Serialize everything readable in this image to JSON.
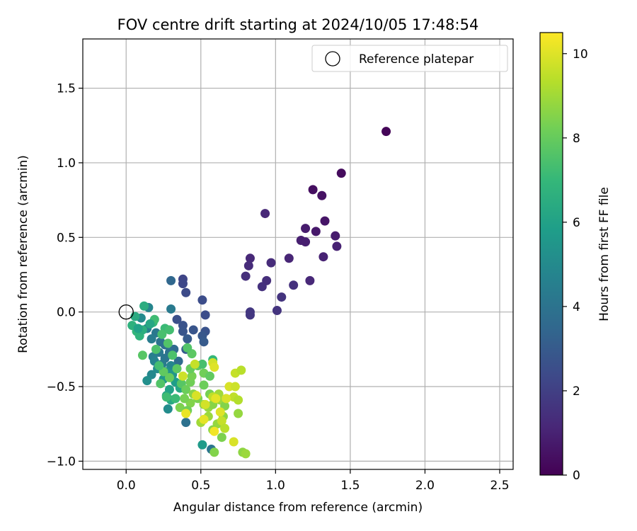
{
  "chart_data": {
    "type": "scatter",
    "title": "FOV centre drift starting at 2024/10/05 17:48:54",
    "xlabel": "Angular distance from reference (arcmin)",
    "ylabel": "Rotation from reference (arcmin)",
    "xlim": [
      -0.29,
      2.59
    ],
    "ylim": [
      -1.055,
      1.83
    ],
    "xticks": [
      0.0,
      0.5,
      1.0,
      1.5,
      2.0,
      2.5
    ],
    "xtick_labels": [
      "0.0",
      "0.5",
      "1.0",
      "1.5",
      "2.0",
      "2.5"
    ],
    "yticks": [
      -1.0,
      -0.5,
      0.0,
      0.5,
      1.0,
      1.5
    ],
    "ytick_labels": [
      "−1.0",
      "−0.5",
      "0.0",
      "0.5",
      "1.0",
      "1.5"
    ],
    "grid": true,
    "legend": {
      "position": "top-right",
      "entries": [
        "Reference platepar"
      ]
    },
    "reference": {
      "x": 0.0,
      "y": 0.0
    },
    "colorbar": {
      "label": "Hours from first FF file",
      "range": [
        0,
        10.5
      ],
      "ticks": [
        0,
        2,
        4,
        6,
        8,
        10
      ],
      "tick_labels": [
        "0",
        "2",
        "4",
        "6",
        "8",
        "10"
      ],
      "colormap": "viridis",
      "colors": [
        "#440154",
        "#482878",
        "#3e4989",
        "#31688e",
        "#26828e",
        "#1f9e89",
        "#35b779",
        "#6ece58",
        "#b5de2b",
        "#fde725"
      ]
    },
    "points": [
      {
        "x": 1.74,
        "y": 1.21,
        "h": 0.1
      },
      {
        "x": 1.44,
        "y": 0.93,
        "h": 0.3
      },
      {
        "x": 1.25,
        "y": 0.82,
        "h": 0.4
      },
      {
        "x": 1.31,
        "y": 0.78,
        "h": 0.5
      },
      {
        "x": 1.33,
        "y": 0.61,
        "h": 0.6
      },
      {
        "x": 1.27,
        "y": 0.54,
        "h": 0.7
      },
      {
        "x": 1.2,
        "y": 0.56,
        "h": 0.8
      },
      {
        "x": 1.4,
        "y": 0.51,
        "h": 0.8
      },
      {
        "x": 1.17,
        "y": 0.48,
        "h": 0.9
      },
      {
        "x": 1.2,
        "y": 0.47,
        "h": 0.9
      },
      {
        "x": 1.41,
        "y": 0.44,
        "h": 1.0
      },
      {
        "x": 1.32,
        "y": 0.37,
        "h": 1.0
      },
      {
        "x": 1.09,
        "y": 0.36,
        "h": 1.1
      },
      {
        "x": 0.93,
        "y": 0.66,
        "h": 1.2
      },
      {
        "x": 0.83,
        "y": 0.36,
        "h": 1.2
      },
      {
        "x": 0.82,
        "y": 0.31,
        "h": 1.3
      },
      {
        "x": 0.97,
        "y": 0.33,
        "h": 1.3
      },
      {
        "x": 0.8,
        "y": 0.24,
        "h": 1.4
      },
      {
        "x": 0.94,
        "y": 0.21,
        "h": 1.4
      },
      {
        "x": 1.23,
        "y": 0.21,
        "h": 1.2
      },
      {
        "x": 1.12,
        "y": 0.18,
        "h": 1.5
      },
      {
        "x": 0.91,
        "y": 0.17,
        "h": 1.5
      },
      {
        "x": 1.04,
        "y": 0.1,
        "h": 1.6
      },
      {
        "x": 1.01,
        "y": 0.01,
        "h": 1.6
      },
      {
        "x": 0.83,
        "y": 0.0,
        "h": 1.7
      },
      {
        "x": 0.83,
        "y": -0.02,
        "h": 1.7
      },
      {
        "x": 0.38,
        "y": 0.22,
        "h": 2.2
      },
      {
        "x": 0.38,
        "y": 0.19,
        "h": 2.3
      },
      {
        "x": 0.4,
        "y": 0.13,
        "h": 2.4
      },
      {
        "x": 0.51,
        "y": 0.08,
        "h": 2.5
      },
      {
        "x": 0.53,
        "y": -0.02,
        "h": 2.5
      },
      {
        "x": 0.34,
        "y": -0.05,
        "h": 2.6
      },
      {
        "x": 0.38,
        "y": -0.09,
        "h": 2.7
      },
      {
        "x": 0.53,
        "y": -0.13,
        "h": 2.7
      },
      {
        "x": 0.45,
        "y": -0.12,
        "h": 2.8
      },
      {
        "x": 0.38,
        "y": -0.13,
        "h": 2.8
      },
      {
        "x": 0.51,
        "y": -0.16,
        "h": 2.9
      },
      {
        "x": 0.52,
        "y": -0.2,
        "h": 3.0
      },
      {
        "x": 0.41,
        "y": -0.18,
        "h": 3.0
      },
      {
        "x": 0.4,
        "y": -0.25,
        "h": 3.1
      },
      {
        "x": 0.3,
        "y": 0.21,
        "h": 3.5
      },
      {
        "x": 0.3,
        "y": 0.02,
        "h": 4.3
      },
      {
        "x": 0.15,
        "y": 0.03,
        "h": 4.8
      },
      {
        "x": 0.1,
        "y": -0.04,
        "h": 5.0
      },
      {
        "x": 0.14,
        "y": -0.11,
        "h": 4.6
      },
      {
        "x": 0.2,
        "y": -0.14,
        "h": 4.2
      },
      {
        "x": 0.17,
        "y": -0.18,
        "h": 4.4
      },
      {
        "x": 0.23,
        "y": -0.2,
        "h": 4.0
      },
      {
        "x": 0.26,
        "y": -0.22,
        "h": 3.8
      },
      {
        "x": 0.32,
        "y": -0.25,
        "h": 3.6
      },
      {
        "x": 0.22,
        "y": -0.27,
        "h": 4.2
      },
      {
        "x": 0.29,
        "y": -0.27,
        "h": 3.9
      },
      {
        "x": 0.18,
        "y": -0.3,
        "h": 4.5
      },
      {
        "x": 0.26,
        "y": -0.31,
        "h": 4.1
      },
      {
        "x": 0.35,
        "y": -0.33,
        "h": 3.7
      },
      {
        "x": 0.19,
        "y": -0.33,
        "h": 4.7
      },
      {
        "x": 0.24,
        "y": -0.35,
        "h": 4.3
      },
      {
        "x": 0.3,
        "y": -0.36,
        "h": 4.8
      },
      {
        "x": 0.21,
        "y": -0.38,
        "h": 5.1
      },
      {
        "x": 0.27,
        "y": -0.4,
        "h": 5.3
      },
      {
        "x": 0.17,
        "y": -0.42,
        "h": 4.9
      },
      {
        "x": 0.14,
        "y": -0.46,
        "h": 5.2
      },
      {
        "x": 0.31,
        "y": -0.42,
        "h": 5.5
      },
      {
        "x": 0.25,
        "y": -0.45,
        "h": 5.6
      },
      {
        "x": 0.33,
        "y": -0.47,
        "h": 5.8
      },
      {
        "x": 0.29,
        "y": -0.52,
        "h": 6.0
      },
      {
        "x": 0.36,
        "y": -0.51,
        "h": 6.2
      },
      {
        "x": 0.27,
        "y": -0.56,
        "h": 6.1
      },
      {
        "x": 0.3,
        "y": -0.59,
        "h": 6.3
      },
      {
        "x": 0.28,
        "y": -0.65,
        "h": 5.1
      },
      {
        "x": 0.4,
        "y": -0.74,
        "h": 3.9
      },
      {
        "x": 0.51,
        "y": -0.89,
        "h": 5.7
      },
      {
        "x": 0.57,
        "y": -0.92,
        "h": 4.1
      },
      {
        "x": 0.12,
        "y": 0.04,
        "h": 6.5
      },
      {
        "x": 0.06,
        "y": -0.03,
        "h": 6.4
      },
      {
        "x": 0.04,
        "y": -0.09,
        "h": 6.7
      },
      {
        "x": 0.07,
        "y": -0.13,
        "h": 6.9
      },
      {
        "x": 0.09,
        "y": -0.16,
        "h": 6.8
      },
      {
        "x": 0.11,
        "y": -0.12,
        "h": 6.6
      },
      {
        "x": 0.18,
        "y": -0.07,
        "h": 7.0
      },
      {
        "x": 0.19,
        "y": -0.05,
        "h": 7.2
      },
      {
        "x": 0.26,
        "y": -0.11,
        "h": 7.1
      },
      {
        "x": 0.29,
        "y": -0.12,
        "h": 7.3
      },
      {
        "x": 0.24,
        "y": -0.15,
        "h": 7.4
      },
      {
        "x": 0.2,
        "y": -0.25,
        "h": 7.5
      },
      {
        "x": 0.28,
        "y": -0.21,
        "h": 7.6
      },
      {
        "x": 0.11,
        "y": -0.29,
        "h": 7.7
      },
      {
        "x": 0.31,
        "y": -0.29,
        "h": 7.5
      },
      {
        "x": 0.34,
        "y": -0.38,
        "h": 7.8
      },
      {
        "x": 0.25,
        "y": -0.4,
        "h": 7.9
      },
      {
        "x": 0.29,
        "y": -0.44,
        "h": 8.0
      },
      {
        "x": 0.23,
        "y": -0.48,
        "h": 7.6
      },
      {
        "x": 0.37,
        "y": -0.48,
        "h": 7.7
      },
      {
        "x": 0.4,
        "y": -0.52,
        "h": 8.1
      },
      {
        "x": 0.43,
        "y": -0.47,
        "h": 8.2
      },
      {
        "x": 0.44,
        "y": -0.43,
        "h": 8.3
      },
      {
        "x": 0.43,
        "y": -0.38,
        "h": 8.0
      },
      {
        "x": 0.48,
        "y": -0.36,
        "h": 7.9
      },
      {
        "x": 0.51,
        "y": -0.35,
        "h": 7.4
      },
      {
        "x": 0.44,
        "y": -0.28,
        "h": 7.8
      },
      {
        "x": 0.41,
        "y": -0.24,
        "h": 7.6
      },
      {
        "x": 0.52,
        "y": -0.41,
        "h": 8.2
      },
      {
        "x": 0.52,
        "y": -0.49,
        "h": 8.1
      },
      {
        "x": 0.56,
        "y": -0.43,
        "h": 7.9
      },
      {
        "x": 0.58,
        "y": -0.32,
        "h": 7.0
      },
      {
        "x": 0.56,
        "y": -0.55,
        "h": 8.3
      },
      {
        "x": 0.48,
        "y": -0.58,
        "h": 8.4
      },
      {
        "x": 0.43,
        "y": -0.61,
        "h": 8.5
      },
      {
        "x": 0.45,
        "y": -0.55,
        "h": 8.6
      },
      {
        "x": 0.39,
        "y": -0.58,
        "h": 8.3
      },
      {
        "x": 0.36,
        "y": -0.64,
        "h": 8.4
      },
      {
        "x": 0.41,
        "y": -0.66,
        "h": 8.2
      },
      {
        "x": 0.52,
        "y": -0.62,
        "h": 8.7
      },
      {
        "x": 0.55,
        "y": -0.64,
        "h": 8.8
      },
      {
        "x": 0.58,
        "y": -0.62,
        "h": 8.6
      },
      {
        "x": 0.63,
        "y": -0.59,
        "h": 8.9
      },
      {
        "x": 0.62,
        "y": -0.55,
        "h": 9.0
      },
      {
        "x": 0.66,
        "y": -0.63,
        "h": 8.5
      },
      {
        "x": 0.65,
        "y": -0.7,
        "h": 8.7
      },
      {
        "x": 0.61,
        "y": -0.75,
        "h": 8.8
      },
      {
        "x": 0.55,
        "y": -0.7,
        "h": 8.9
      },
      {
        "x": 0.5,
        "y": -0.74,
        "h": 9.0
      },
      {
        "x": 0.58,
        "y": -0.79,
        "h": 8.6
      },
      {
        "x": 0.64,
        "y": -0.84,
        "h": 8.4
      },
      {
        "x": 0.59,
        "y": -0.94,
        "h": 8.5
      },
      {
        "x": 0.75,
        "y": -0.68,
        "h": 8.8
      },
      {
        "x": 0.78,
        "y": -0.94,
        "h": 8.7
      },
      {
        "x": 0.8,
        "y": -0.95,
        "h": 8.9
      },
      {
        "x": 0.46,
        "y": -0.35,
        "h": 9.6
      },
      {
        "x": 0.58,
        "y": -0.34,
        "h": 9.8
      },
      {
        "x": 0.59,
        "y": -0.37,
        "h": 10.0
      },
      {
        "x": 0.73,
        "y": -0.41,
        "h": 9.6
      },
      {
        "x": 0.77,
        "y": -0.39,
        "h": 9.4
      },
      {
        "x": 0.38,
        "y": -0.43,
        "h": 9.7
      },
      {
        "x": 0.47,
        "y": -0.56,
        "h": 9.9
      },
      {
        "x": 0.53,
        "y": -0.62,
        "h": 9.8
      },
      {
        "x": 0.58,
        "y": -0.57,
        "h": 9.5
      },
      {
        "x": 0.6,
        "y": -0.58,
        "h": 10.1
      },
      {
        "x": 0.69,
        "y": -0.5,
        "h": 9.9
      },
      {
        "x": 0.73,
        "y": -0.5,
        "h": 9.7
      },
      {
        "x": 0.72,
        "y": -0.57,
        "h": 9.5
      },
      {
        "x": 0.75,
        "y": -0.59,
        "h": 9.3
      },
      {
        "x": 0.67,
        "y": -0.58,
        "h": 9.9
      },
      {
        "x": 0.63,
        "y": -0.67,
        "h": 10.0
      },
      {
        "x": 0.4,
        "y": -0.68,
        "h": 10.2
      },
      {
        "x": 0.52,
        "y": -0.72,
        "h": 10.1
      },
      {
        "x": 0.64,
        "y": -0.73,
        "h": 9.6
      },
      {
        "x": 0.59,
        "y": -0.8,
        "h": 10.3
      },
      {
        "x": 0.72,
        "y": -0.87,
        "h": 9.9
      },
      {
        "x": 0.66,
        "y": -0.78,
        "h": 9.4
      },
      {
        "x": 0.27,
        "y": -0.57,
        "h": 7.2
      },
      {
        "x": 0.33,
        "y": -0.58,
        "h": 7.1
      },
      {
        "x": 0.22,
        "y": -0.36,
        "h": 7.3
      },
      {
        "x": 0.16,
        "y": -0.08,
        "h": 6.2
      },
      {
        "x": 0.08,
        "y": -0.11,
        "h": 6.0
      }
    ]
  }
}
